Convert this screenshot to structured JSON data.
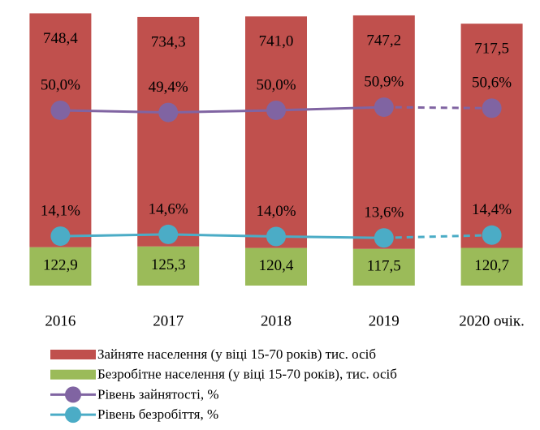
{
  "chart_data": {
    "type": "bar",
    "stacked": true,
    "categories": [
      "2016",
      "2017",
      "2018",
      "2019",
      "2020 очік."
    ],
    "ylim": [
      0,
      875
    ],
    "y2lim": [
      0,
      78
    ],
    "series": [
      {
        "name": "Зайняте населення (у віці 15-70 років) тис. осіб",
        "type": "bar",
        "color": "#c0504d",
        "values": [
          748.4,
          734.3,
          741.0,
          747.2,
          717.5
        ],
        "value_labels": [
          "748,4",
          "734,3",
          "741,0",
          "747,2",
          "717,5"
        ]
      },
      {
        "name": "Безробітне населення (у віці 15-70 років), тис. осіб",
        "type": "bar",
        "color": "#9bbb59",
        "values": [
          122.9,
          125.3,
          120.4,
          117.5,
          120.7
        ],
        "value_labels": [
          "122,9",
          "125,3",
          "120,4",
          "117,5",
          "120,7"
        ]
      },
      {
        "name": "Рівень зайнятості, %",
        "type": "line",
        "axis": "y2",
        "color": "#8064a2",
        "dash_last": true,
        "values": [
          50.0,
          49.4,
          50.0,
          50.9,
          50.6
        ],
        "value_labels": [
          "50,0%",
          "49,4%",
          "50,0%",
          "50,9%",
          "50,6%"
        ]
      },
      {
        "name": "Рівень безробіття, %",
        "type": "line",
        "axis": "y2",
        "color": "#4bacc6",
        "dash_last": true,
        "values": [
          14.1,
          14.6,
          14.0,
          13.6,
          14.4
        ],
        "value_labels": [
          "14,1%",
          "14,6%",
          "14,0%",
          "13,6%",
          "14,4%"
        ]
      }
    ]
  }
}
